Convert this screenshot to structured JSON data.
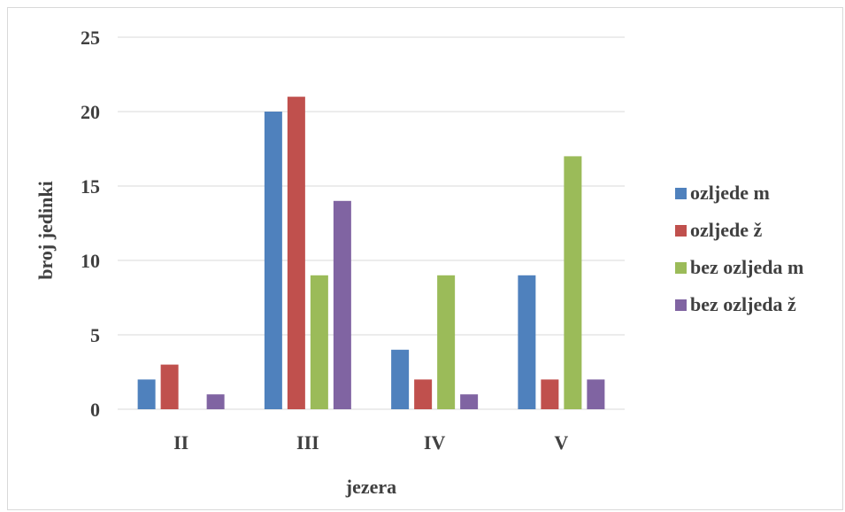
{
  "chart_data": {
    "type": "bar",
    "title": "",
    "xlabel": "jezera",
    "ylabel": "broj jedinki",
    "categories": [
      "II",
      "III",
      "IV",
      "V"
    ],
    "series": [
      {
        "name": "ozljede m",
        "color": "#4f81bd",
        "values": [
          2,
          20,
          4,
          9
        ]
      },
      {
        "name": "ozljede ž",
        "color": "#c0504d",
        "values": [
          3,
          21,
          2,
          2
        ]
      },
      {
        "name": "bez ozljeda m",
        "color": "#9bbb59",
        "values": [
          0,
          9,
          9,
          17
        ]
      },
      {
        "name": "bez ozljeda ž",
        "color": "#8064a2",
        "values": [
          1,
          14,
          1,
          2
        ]
      }
    ],
    "yticks": [
      "0",
      "5",
      "10",
      "15",
      "20",
      "25"
    ],
    "ylim": [
      0,
      25
    ],
    "grid": true,
    "legend_position": "right"
  }
}
